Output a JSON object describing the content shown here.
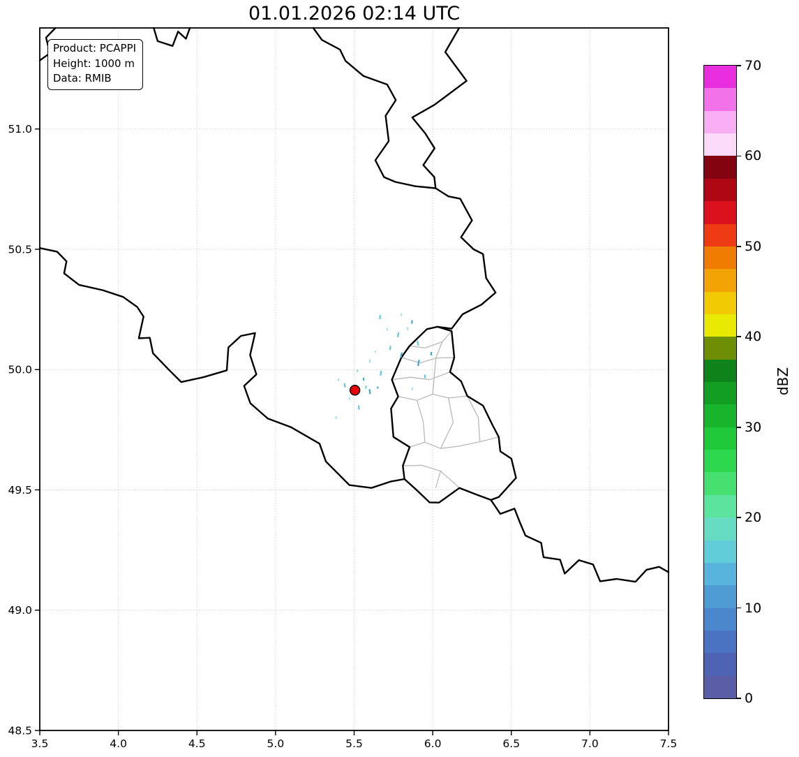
{
  "title": "01.01.2026 02:14 UTC",
  "info_box": {
    "lines": [
      "Product: PCAPPI",
      "Height: 1000 m",
      "Data: RMIB"
    ]
  },
  "colorbar": {
    "label": "dBZ",
    "vmin": 0,
    "vmax": 70,
    "tick_values": [
      0,
      10,
      20,
      30,
      40,
      50,
      60,
      70
    ],
    "colors_bottom_to_top": [
      "#5b5ea6",
      "#4f63b5",
      "#4a73c2",
      "#4a87cc",
      "#4f9cd4",
      "#58b4dc",
      "#60cdd8",
      "#66dcc2",
      "#5ce39e",
      "#46e070",
      "#2ed84e",
      "#1fc93a",
      "#17b42c",
      "#129e22",
      "#0e831a",
      "#6d8e05",
      "#e8ea04",
      "#f2ca03",
      "#f2a202",
      "#f17c02",
      "#ef3b14",
      "#da111c",
      "#b00715",
      "#840310",
      "#fad9f9",
      "#f7aef3",
      "#f272ea",
      "#e92ee0"
    ]
  },
  "chart_data": {
    "type": "heatmap",
    "title": "01.01.2026 02:14 UTC",
    "value_unit": "dBZ",
    "xlim": [
      3.5,
      7.5
    ],
    "ylim": [
      48.5,
      51.42
    ],
    "x_tick_values": [
      3.5,
      4.0,
      4.5,
      5.0,
      5.5,
      6.0,
      6.5,
      7.0,
      7.5
    ],
    "x_tick_labels": [
      "3.5",
      "4.0",
      "4.5",
      "5.0",
      "5.5",
      "6.0",
      "6.5",
      "7.0",
      "7.5"
    ],
    "y_tick_values": [
      51.0,
      50.5,
      50.0,
      49.5,
      49.0,
      48.5
    ],
    "y_tick_labels": [
      "51.0",
      "50.5",
      "50.0",
      "49.5",
      "49.0",
      "48.5"
    ],
    "grid": true,
    "radar_site": {
      "lon": 5.505,
      "lat": 49.914
    },
    "echo_palette": [
      "#a9e1ee",
      "#63c6de",
      "#3fa9d2",
      "#7fd2e4"
    ],
    "echoes": [
      [
        5.78,
        50.145,
        7,
        1,
        10
      ],
      [
        5.84,
        50.17,
        5,
        0,
        -8
      ],
      [
        5.73,
        50.09,
        6,
        1,
        5
      ],
      [
        5.8,
        50.06,
        8,
        2,
        12
      ],
      [
        5.6,
        50.035,
        5,
        0,
        -5
      ],
      [
        5.67,
        49.985,
        7,
        1,
        8
      ],
      [
        5.56,
        49.96,
        4,
        2,
        0
      ],
      [
        5.44,
        49.935,
        6,
        1,
        -10
      ],
      [
        5.4,
        49.958,
        4,
        0,
        6
      ],
      [
        5.575,
        49.927,
        5,
        3,
        0
      ],
      [
        5.6,
        49.908,
        7,
        2,
        -6
      ],
      [
        5.47,
        49.88,
        4,
        0,
        5
      ],
      [
        5.53,
        49.842,
        6,
        1,
        -4
      ],
      [
        5.385,
        49.8,
        4,
        0,
        8
      ],
      [
        5.91,
        50.028,
        9,
        2,
        10
      ],
      [
        5.95,
        49.972,
        5,
        1,
        -6
      ],
      [
        5.87,
        49.92,
        4,
        0,
        4
      ],
      [
        5.905,
        50.11,
        7,
        1,
        -10
      ],
      [
        5.99,
        50.066,
        5,
        2,
        6
      ],
      [
        5.71,
        50.168,
        4,
        0,
        -5
      ],
      [
        5.665,
        50.218,
        6,
        1,
        7
      ],
      [
        5.8,
        50.228,
        4,
        0,
        -6
      ],
      [
        5.868,
        50.198,
        5,
        2,
        5
      ],
      [
        5.635,
        50.075,
        3,
        0,
        0
      ],
      [
        5.52,
        49.995,
        3,
        3,
        0
      ],
      [
        5.65,
        49.925,
        3,
        2,
        0
      ]
    ],
    "map_layers": {
      "national": [
        [
          [
            3.5,
            51.285
          ],
          [
            3.565,
            51.315
          ],
          [
            3.54,
            51.38
          ],
          [
            3.6,
            51.42
          ]
        ],
        [
          [
            4.225,
            51.42
          ],
          [
            4.25,
            51.365
          ],
          [
            4.345,
            51.345
          ],
          [
            4.38,
            51.405
          ],
          [
            4.43,
            51.375
          ],
          [
            4.455,
            51.42
          ]
        ],
        [
          [
            5.24,
            51.42
          ],
          [
            5.295,
            51.37
          ],
          [
            5.41,
            51.33
          ],
          [
            5.445,
            51.283
          ],
          [
            5.56,
            51.22
          ],
          [
            5.71,
            51.185
          ],
          [
            5.765,
            51.12
          ],
          [
            5.7,
            51.055
          ],
          [
            5.72,
            50.95
          ],
          [
            5.635,
            50.87
          ],
          [
            5.69,
            50.8
          ],
          [
            5.762,
            50.78
          ],
          [
            5.89,
            50.762
          ],
          [
            6.018,
            50.754
          ]
        ],
        [
          [
            6.168,
            51.42
          ],
          [
            6.08,
            51.32
          ],
          [
            6.215,
            51.2
          ],
          [
            6.01,
            51.1
          ],
          [
            5.87,
            51.048
          ],
          [
            5.952,
            50.982
          ],
          [
            6.012,
            50.92
          ],
          [
            5.94,
            50.85
          ],
          [
            6.01,
            50.8
          ],
          [
            6.018,
            50.754
          ]
        ],
        [
          [
            6.018,
            50.754
          ],
          [
            6.1,
            50.72
          ],
          [
            6.175,
            50.71
          ],
          [
            6.25,
            50.62
          ],
          [
            6.18,
            50.55
          ],
          [
            6.26,
            50.5
          ],
          [
            6.32,
            50.48
          ],
          [
            6.34,
            50.38
          ],
          [
            6.4,
            50.32
          ],
          [
            6.31,
            50.27
          ],
          [
            6.19,
            50.23
          ],
          [
            6.12,
            50.17
          ],
          [
            6.03,
            50.178
          ]
        ],
        [
          [
            6.03,
            50.178
          ],
          [
            6.12,
            50.16
          ],
          [
            6.137,
            50.05
          ],
          [
            6.11,
            49.99
          ],
          [
            6.18,
            49.952
          ],
          [
            6.22,
            49.89
          ],
          [
            6.32,
            49.85
          ],
          [
            6.38,
            49.77
          ],
          [
            6.42,
            49.72
          ],
          [
            6.43,
            49.66
          ],
          [
            6.5,
            49.63
          ],
          [
            6.53,
            49.55
          ],
          [
            6.42,
            49.47
          ],
          [
            6.37,
            49.458
          ],
          [
            6.28,
            49.48
          ],
          [
            6.17,
            49.508
          ],
          [
            6.04,
            49.447
          ],
          [
            5.98,
            49.448
          ],
          [
            5.9,
            49.498
          ],
          [
            5.82,
            49.545
          ],
          [
            5.81,
            49.6
          ],
          [
            5.853,
            49.678
          ],
          [
            5.75,
            49.72
          ],
          [
            5.735,
            49.838
          ],
          [
            5.78,
            49.888
          ],
          [
            5.74,
            49.958
          ],
          [
            5.8,
            50.05
          ],
          [
            5.852,
            50.098
          ],
          [
            5.963,
            50.168
          ],
          [
            6.03,
            50.178
          ]
        ],
        [
          [
            3.5,
            50.505
          ],
          [
            3.61,
            50.49
          ],
          [
            3.67,
            50.45
          ],
          [
            3.655,
            50.4
          ],
          [
            3.75,
            50.352
          ],
          [
            3.9,
            50.33
          ],
          [
            4.03,
            50.302
          ],
          [
            4.12,
            50.26
          ],
          [
            4.16,
            50.22
          ],
          [
            4.13,
            50.13
          ],
          [
            4.2,
            50.132
          ],
          [
            4.22,
            50.068
          ],
          [
            4.32,
            50.0
          ],
          [
            4.4,
            49.948
          ],
          [
            4.54,
            49.968
          ],
          [
            4.69,
            49.997
          ],
          [
            4.7,
            50.092
          ],
          [
            4.78,
            50.14
          ],
          [
            4.87,
            50.152
          ],
          [
            4.838,
            50.06
          ],
          [
            4.878,
            49.98
          ],
          [
            4.8,
            49.932
          ],
          [
            4.84,
            49.86
          ],
          [
            4.95,
            49.797
          ],
          [
            5.1,
            49.76
          ],
          [
            5.28,
            49.692
          ],
          [
            5.32,
            49.618
          ],
          [
            5.47,
            49.52
          ],
          [
            5.61,
            49.508
          ],
          [
            5.735,
            49.535
          ],
          [
            5.82,
            49.545
          ]
        ],
        [
          [
            6.37,
            49.458
          ],
          [
            6.43,
            49.4
          ],
          [
            6.52,
            49.422
          ],
          [
            6.556,
            49.362
          ],
          [
            6.59,
            49.31
          ],
          [
            6.69,
            49.28
          ],
          [
            6.705,
            49.22
          ],
          [
            6.81,
            49.21
          ],
          [
            6.84,
            49.152
          ],
          [
            6.93,
            49.208
          ],
          [
            7.02,
            49.19
          ],
          [
            7.065,
            49.12
          ],
          [
            7.17,
            49.13
          ],
          [
            7.29,
            49.118
          ],
          [
            7.36,
            49.168
          ],
          [
            7.44,
            49.18
          ],
          [
            7.5,
            49.158
          ]
        ]
      ],
      "regional": [
        [
          [
            5.78,
            49.888
          ],
          [
            5.9,
            49.872
          ],
          [
            6.0,
            49.898
          ],
          [
            6.1,
            49.882
          ],
          [
            6.22,
            49.89
          ]
        ],
        [
          [
            5.8,
            50.05
          ],
          [
            5.92,
            50.028
          ],
          [
            6.02,
            50.048
          ],
          [
            6.137,
            50.05
          ]
        ],
        [
          [
            5.74,
            49.958
          ],
          [
            5.86,
            49.968
          ],
          [
            5.98,
            49.958
          ],
          [
            6.11,
            49.99
          ]
        ],
        [
          [
            5.853,
            49.678
          ],
          [
            5.95,
            49.698
          ],
          [
            6.05,
            49.672
          ],
          [
            6.17,
            49.682
          ],
          [
            6.3,
            49.7
          ],
          [
            6.42,
            49.72
          ]
        ],
        [
          [
            5.81,
            49.6
          ],
          [
            5.93,
            49.602
          ],
          [
            6.05,
            49.578
          ],
          [
            6.17,
            49.508
          ]
        ],
        [
          [
            5.95,
            49.698
          ],
          [
            5.94,
            49.782
          ],
          [
            5.9,
            49.872
          ]
        ],
        [
          [
            6.1,
            49.882
          ],
          [
            6.13,
            49.78
          ],
          [
            6.05,
            49.672
          ]
        ],
        [
          [
            6.0,
            49.898
          ],
          [
            6.02,
            50.048
          ]
        ],
        [
          [
            6.22,
            49.89
          ],
          [
            6.29,
            49.8
          ],
          [
            6.3,
            49.7
          ]
        ],
        [
          [
            6.05,
            49.578
          ],
          [
            6.02,
            49.51
          ]
        ],
        [
          [
            6.06,
            50.115
          ],
          [
            6.02,
            50.048
          ]
        ],
        [
          [
            5.852,
            50.098
          ],
          [
            5.95,
            50.09
          ],
          [
            6.06,
            50.115
          ],
          [
            6.12,
            50.16
          ]
        ]
      ]
    },
    "colors": {
      "grid": "#c9c9c9",
      "national_border": "#000000",
      "regional_border": "#b9b9b9",
      "radar_marker": "#e8000b",
      "frame": "#000000"
    }
  }
}
